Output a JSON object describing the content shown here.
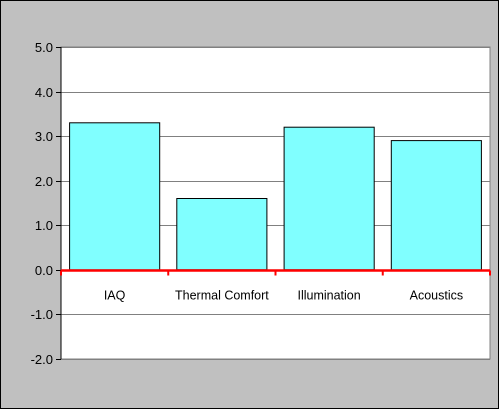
{
  "chart_data": {
    "type": "bar",
    "title": "",
    "xlabel": "",
    "ylabel": "",
    "categories": [
      "IAQ",
      "Thermal Comfort",
      "Illumination",
      "Acoustics"
    ],
    "values": [
      3.3,
      1.6,
      3.2,
      2.9
    ],
    "ylim": [
      -2.0,
      5.0
    ],
    "yticks": [
      "5.0",
      "4.0",
      "3.0",
      "2.0",
      "1.0",
      "0.0",
      "-1.0",
      "-2.0"
    ],
    "grid": true,
    "legend": "none",
    "colors": {
      "background": "#c0c0c0",
      "plot_area": "#ffffff",
      "bar_fill": "#80ffff",
      "bar_stroke": "#000000",
      "gridline": "#808080",
      "zero_axis": "#ff0000"
    }
  }
}
